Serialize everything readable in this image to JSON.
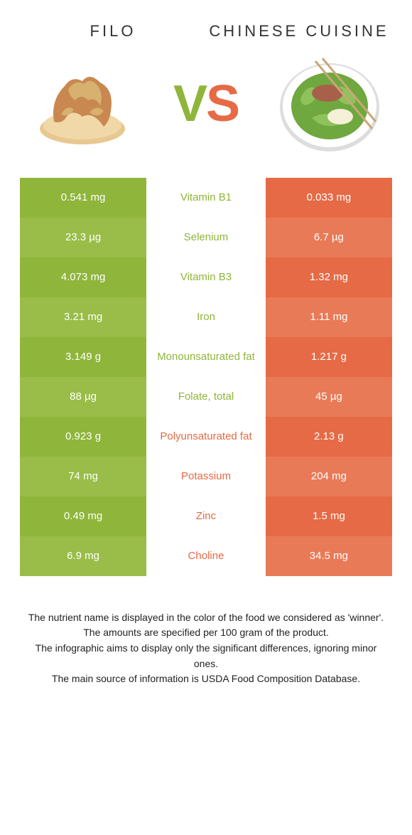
{
  "titles": {
    "left": "FILO",
    "right": "CHINESE CUISINE"
  },
  "vs": {
    "v": "V",
    "s": "S"
  },
  "colors": {
    "green": "#8fb53a",
    "green_alt": "#99bd48",
    "orange": "#e66a45",
    "orange_alt": "#e97a57",
    "white": "#ffffff"
  },
  "filo_svg": {
    "pastry_body": "#e8c890",
    "pastry_dark": "#d8b070",
    "pastry_top": "#c88850",
    "pastry_highlight": "#f0d8a8"
  },
  "bowl_svg": {
    "plate": "#ffffff",
    "plate_edge": "#dddddd",
    "greens": "#6fa83e",
    "greens_light": "#8fc25a",
    "meat": "#a8604a",
    "rice": "#f5f0d8",
    "chop": "#c8a878"
  },
  "rows": [
    {
      "left": "0.541 mg",
      "nutrient": "Vitamin B1",
      "right": "0.033 mg",
      "winner": "left"
    },
    {
      "left": "23.3 µg",
      "nutrient": "Selenium",
      "right": "6.7 µg",
      "winner": "left"
    },
    {
      "left": "4.073 mg",
      "nutrient": "Vitamin B3",
      "right": "1.32 mg",
      "winner": "left"
    },
    {
      "left": "3.21 mg",
      "nutrient": "Iron",
      "right": "1.11 mg",
      "winner": "left"
    },
    {
      "left": "3.149 g",
      "nutrient": "Monounsaturated fat",
      "right": "1.217 g",
      "winner": "left"
    },
    {
      "left": "88 µg",
      "nutrient": "Folate, total",
      "right": "45 µg",
      "winner": "left"
    },
    {
      "left": "0.923 g",
      "nutrient": "Polyunsaturated fat",
      "right": "2.13 g",
      "winner": "right"
    },
    {
      "left": "74 mg",
      "nutrient": "Potassium",
      "right": "204 mg",
      "winner": "right"
    },
    {
      "left": "0.49 mg",
      "nutrient": "Zinc",
      "right": "1.5 mg",
      "winner": "right"
    },
    {
      "left": "6.9 mg",
      "nutrient": "Choline",
      "right": "34.5 mg",
      "winner": "right"
    }
  ],
  "footer": [
    "The nutrient name is displayed in the color of the food we considered as 'winner'.",
    "The amounts are specified per 100 gram of the product.",
    "The infographic aims to display only the significant differences, ignoring minor ones.",
    "The main source of information is USDA Food Composition Database."
  ]
}
